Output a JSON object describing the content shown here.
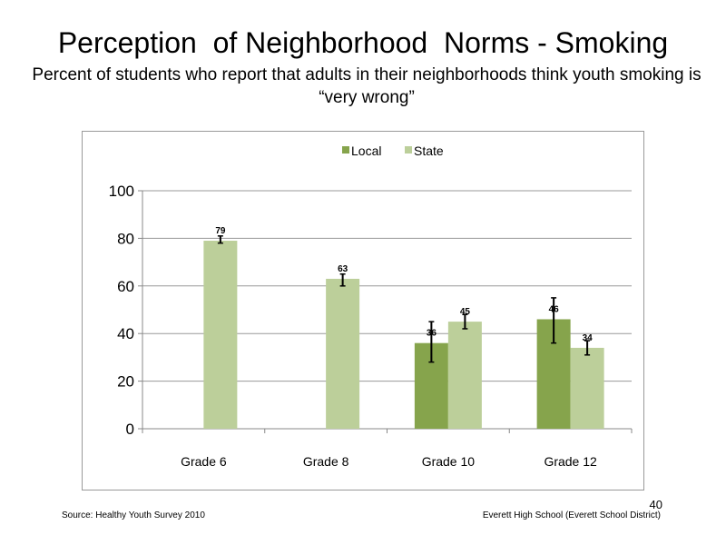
{
  "title": "Perception  of Neighborhood  Norms - Smoking",
  "subtitle": "Percent of students who report that adults in their neighborhoods think youth smoking is “very wrong”",
  "footer": {
    "source": "Source: Healthy Youth Survey 2010",
    "school": "Everett High School (Everett School District)",
    "page_number": "40"
  },
  "chart_data": {
    "type": "bar",
    "categories": [
      "Grade 6",
      "Grade 8",
      "Grade 10",
      "Grade 12"
    ],
    "series": [
      {
        "name": "Local",
        "color": "#86a44c",
        "values": [
          null,
          null,
          36,
          46
        ],
        "labels": [
          "",
          "",
          "36",
          "46"
        ],
        "error_low": [
          null,
          null,
          28,
          36
        ],
        "error_high": [
          null,
          null,
          45,
          55
        ]
      },
      {
        "name": "State",
        "color": "#bccf9a",
        "values": [
          79,
          63,
          45,
          34
        ],
        "labels": [
          "79",
          "63",
          "45",
          "34"
        ],
        "error_low": [
          78,
          60,
          42,
          31
        ],
        "error_high": [
          81,
          65,
          48,
          37
        ]
      }
    ],
    "ylim": [
      0,
      100
    ],
    "yticks": [
      "0",
      "20",
      "40",
      "60",
      "80",
      "100"
    ],
    "grid": true,
    "legend_position": "top-center"
  }
}
